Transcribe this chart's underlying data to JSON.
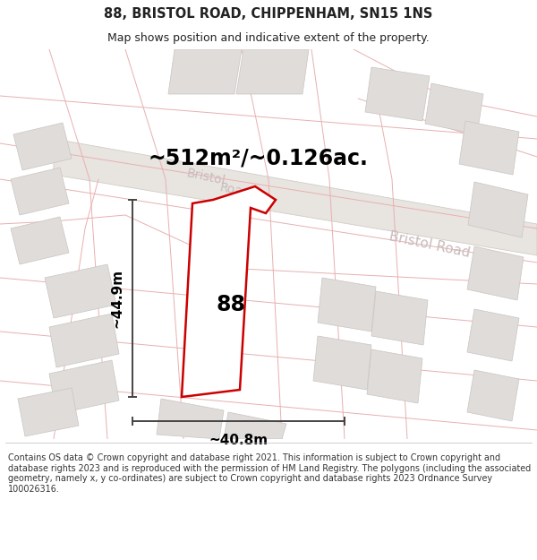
{
  "title": "88, BRISTOL ROAD, CHIPPENHAM, SN15 1NS",
  "subtitle": "Map shows position and indicative extent of the property.",
  "footer": "Contains OS data © Crown copyright and database right 2021. This information is subject to Crown copyright and database rights 2023 and is reproduced with the permission of HM Land Registry. The polygons (including the associated geometry, namely x, y co-ordinates) are subject to Crown copyright and database rights 2023 Ordnance Survey 100026316.",
  "area_label": "~512m²/~0.126ac.",
  "height_label": "~44.9m",
  "width_label": "~40.8m",
  "number_label": "88",
  "map_bg": "#f7f5f3",
  "block_color": "#e0dcda",
  "block_edge": "#c8c4c2",
  "road_line_color": "#e8b0b0",
  "road_band_color": "#e8e4e0",
  "road_band_edge": "#d0ccc8",
  "plot_line_color": "#cc0000",
  "dim_line_color": "#444444",
  "label_color": "#c8bcbc",
  "title_color": "#222222",
  "footer_color": "#333333",
  "white": "#ffffff"
}
